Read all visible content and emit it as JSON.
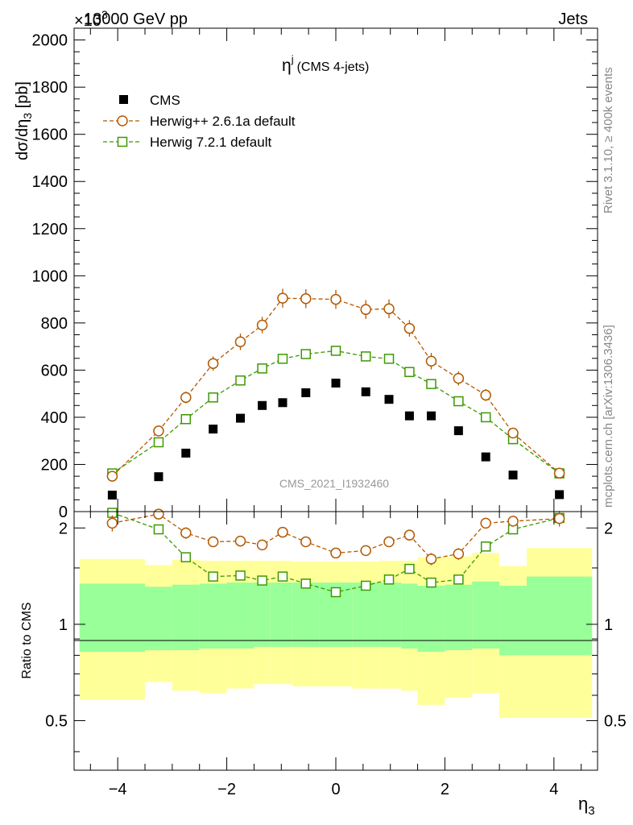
{
  "header": {
    "left": "13000 GeV pp",
    "right": "Jets",
    "exponent": "×10",
    "exponent_power": "3"
  },
  "side_labels": {
    "rivet": "Rivet 3.1.10, ≥ 400k events",
    "mcplots": "mcplots.cern.ch [arXiv:1306.3436]"
  },
  "watermark": "CMS_2021_I1932460",
  "colors": {
    "cms": "#000000",
    "herwig_pp": "#b35900",
    "herwig_7": "#3d9900",
    "band_inner": "#99ff99",
    "band_outer": "#ffff99"
  },
  "chart_data": [
    {
      "type": "scatter",
      "title": "η^j (CMS 4-jets)",
      "title_main": "η",
      "title_sup": "j",
      "title_suffix": "(CMS 4-jets)",
      "xlabel": "η3",
      "ylabel": "dσ/dη3 [pb]",
      "y_multiplier": "×10^3",
      "xlim": [
        -4.8,
        4.8
      ],
      "ylim": [
        0,
        2050
      ],
      "y_ticks": [
        0,
        200,
        400,
        600,
        800,
        1000,
        1200,
        1400,
        1600,
        1800,
        2000
      ],
      "x_ticks": [
        -4,
        -2,
        0,
        2,
        4
      ],
      "x_tick_labels": [
        "−4",
        "−2",
        "0",
        "2",
        "4"
      ],
      "legend_position": "top-left",
      "x": [
        -4.1,
        -3.25,
        -2.75,
        -2.25,
        -1.75,
        -1.35,
        -0.975,
        -0.55,
        0,
        0.55,
        0.975,
        1.35,
        1.75,
        2.25,
        2.75,
        3.25,
        4.1
      ],
      "series": [
        {
          "name": "CMS",
          "marker": "square-filled",
          "values": [
            70,
            148,
            248,
            350,
            396,
            450,
            462,
            504,
            545,
            508,
            476,
            406,
            406,
            343,
            232,
            155,
            72
          ]
        },
        {
          "name": "Herwig++ 2.6.1a default",
          "marker": "circle-open",
          "values": [
            150,
            342,
            484,
            628,
            720,
            791,
            905,
            903,
            900,
            857,
            860,
            777,
            638,
            565,
            494,
            333,
            163
          ],
          "errors": [
            15,
            20,
            25,
            30,
            35,
            35,
            40,
            40,
            40,
            40,
            40,
            35,
            35,
            30,
            25,
            20,
            15
          ]
        },
        {
          "name": "Herwig 7.2.1 default",
          "marker": "square-open",
          "values": [
            162,
            294,
            392,
            484,
            556,
            607,
            648,
            668,
            682,
            658,
            648,
            592,
            541,
            468,
            400,
            307,
            162
          ],
          "errors": [
            8,
            10,
            10,
            10,
            10,
            12,
            12,
            12,
            12,
            12,
            12,
            12,
            10,
            10,
            10,
            8,
            8
          ]
        }
      ]
    },
    {
      "type": "scatter",
      "ylabel": "Ratio to CMS",
      "xlabel": "η3",
      "xlim": [
        -4.8,
        4.8
      ],
      "ylim": [
        0.35,
        2.25
      ],
      "y_ticks": [
        0.5,
        1,
        2
      ],
      "y_tick_labels": [
        "0.5",
        "1",
        "2"
      ],
      "x": [
        -4.1,
        -3.25,
        -2.75,
        -2.25,
        -1.75,
        -1.35,
        -0.975,
        -0.55,
        0,
        0.55,
        0.975,
        1.35,
        1.75,
        2.25,
        2.75,
        3.25,
        4.1
      ],
      "bin_edges": [
        -4.7,
        -3.5,
        -3.0,
        -2.5,
        -2.0,
        -1.5,
        -1.2,
        -0.8,
        -0.3,
        0.3,
        0.8,
        1.2,
        1.5,
        2.0,
        2.5,
        3.0,
        3.5,
        4.7
      ],
      "band_inner": {
        "low": [
          0.82,
          0.83,
          0.83,
          0.84,
          0.84,
          0.85,
          0.85,
          0.85,
          0.85,
          0.85,
          0.85,
          0.84,
          0.82,
          0.83,
          0.84,
          0.8,
          0.8
        ],
        "high": [
          1.34,
          1.31,
          1.33,
          1.34,
          1.35,
          1.35,
          1.35,
          1.35,
          1.35,
          1.35,
          1.35,
          1.34,
          1.32,
          1.33,
          1.36,
          1.32,
          1.41
        ]
      },
      "band_outer": {
        "low": [
          0.58,
          0.66,
          0.62,
          0.61,
          0.63,
          0.65,
          0.65,
          0.64,
          0.64,
          0.63,
          0.63,
          0.62,
          0.56,
          0.59,
          0.61,
          0.51,
          0.51
        ],
        "high": [
          1.6,
          1.53,
          1.59,
          1.58,
          1.58,
          1.58,
          1.58,
          1.57,
          1.57,
          1.57,
          1.58,
          1.58,
          1.62,
          1.63,
          1.67,
          1.52,
          1.73
        ]
      },
      "series": [
        {
          "name": "Herwig++ 2.6.1a default",
          "values": [
            2.07,
            2.21,
            1.93,
            1.81,
            1.82,
            1.77,
            1.94,
            1.81,
            1.67,
            1.7,
            1.81,
            1.9,
            1.6,
            1.66,
            2.07,
            2.1,
            2.14
          ],
          "errors": [
            0.12,
            0.08,
            0.08,
            0.06,
            0.07,
            0.06,
            0.06,
            0.06,
            0.05,
            0.06,
            0.06,
            0.06,
            0.07,
            0.07,
            0.08,
            0.08,
            0.12
          ]
        },
        {
          "name": "Herwig 7.2.1 default",
          "values": [
            2.23,
            1.98,
            1.62,
            1.41,
            1.42,
            1.37,
            1.41,
            1.34,
            1.26,
            1.32,
            1.38,
            1.49,
            1.35,
            1.38,
            1.75,
            1.98,
            2.15
          ],
          "errors": [
            0.02,
            0.02,
            0.02,
            0.02,
            0.02,
            0.02,
            0.02,
            0.02,
            0.02,
            0.02,
            0.02,
            0.02,
            0.02,
            0.02,
            0.02,
            0.02,
            0.02
          ]
        }
      ]
    }
  ]
}
